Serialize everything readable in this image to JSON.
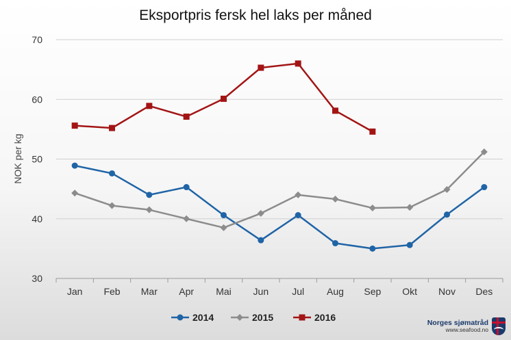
{
  "chart_data": {
    "type": "line",
    "title": "Eksportpris fersk hel laks per måned",
    "xlabel": "",
    "ylabel": "NOK per kg",
    "categories": [
      "Jan",
      "Feb",
      "Mar",
      "Apr",
      "Mai",
      "Jun",
      "Jul",
      "Aug",
      "Sep",
      "Okt",
      "Nov",
      "Des"
    ],
    "ylim": [
      30,
      70
    ],
    "yticks": [
      30,
      40,
      50,
      60,
      70
    ],
    "grid": true,
    "legend_position": "bottom",
    "series": [
      {
        "name": "2014",
        "color": "#1f64a6",
        "marker": "circle",
        "values": [
          48.9,
          47.6,
          44.0,
          45.3,
          40.6,
          36.4,
          40.6,
          35.9,
          35.0,
          35.6,
          40.7,
          45.3
        ]
      },
      {
        "name": "2015",
        "color": "#8c8c8c",
        "marker": "diamond",
        "values": [
          44.3,
          42.2,
          41.5,
          40.0,
          38.5,
          40.9,
          44.0,
          43.3,
          41.8,
          41.9,
          44.9,
          51.2
        ]
      },
      {
        "name": "2016",
        "color": "#a31515",
        "marker": "square",
        "values": [
          55.6,
          55.2,
          58.9,
          57.1,
          60.1,
          65.3,
          66.0,
          58.1,
          54.6,
          null,
          null,
          null
        ]
      }
    ]
  },
  "logo": {
    "name": "Norges sjømatråd",
    "url": "www.seafood.no",
    "icon": "norge-flag-shield"
  }
}
